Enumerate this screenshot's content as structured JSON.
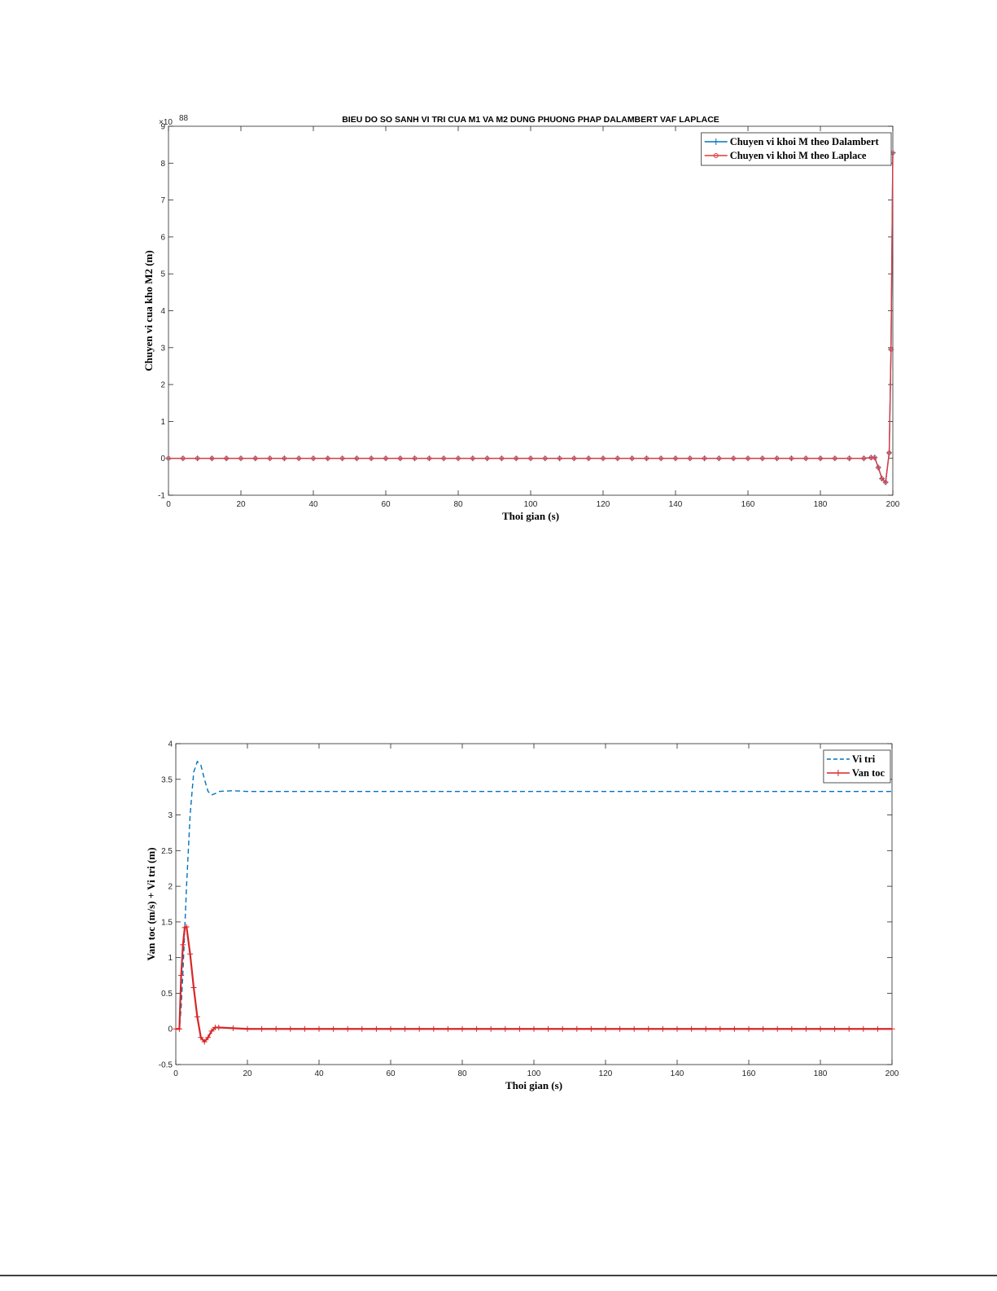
{
  "chart_data": [
    {
      "type": "line",
      "title": "BIEU DO SO SANH VI TRI CUA M1 VA M2 DUNG PHUONG PHAP DALAMBERT VAF LAPLACE",
      "x_label": "Thoi gian (s)",
      "y_label": "Chuyen vi cua kho M2 (m)",
      "y_multiplier": "×10",
      "y_multiplier_power": 88,
      "xlim": [
        0,
        200
      ],
      "xticks": [
        0,
        20,
        40,
        60,
        80,
        100,
        120,
        140,
        160,
        180,
        200
      ],
      "ylim": [
        -1,
        9
      ],
      "yticks": [
        -1,
        0,
        1,
        2,
        3,
        4,
        5,
        6,
        7,
        8,
        9
      ],
      "legend": "northeast",
      "x": [
        0,
        4,
        8,
        12,
        16,
        20,
        24,
        28,
        32,
        36,
        40,
        44,
        48,
        52,
        56,
        60,
        64,
        68,
        72,
        76,
        80,
        84,
        88,
        92,
        96,
        100,
        104,
        108,
        112,
        116,
        120,
        124,
        128,
        132,
        136,
        140,
        144,
        148,
        152,
        156,
        160,
        164,
        168,
        172,
        176,
        180,
        184,
        188,
        192,
        194,
        195,
        196,
        197,
        198,
        199,
        199.5,
        200
      ],
      "series": [
        {
          "name": "Chuyen vi khoi M theo Dalambert",
          "color": "#0072bd",
          "marker": "+",
          "line_style": "solid",
          "values": [
            0,
            0,
            0,
            0,
            0,
            0,
            0,
            0,
            0,
            0,
            0,
            0,
            0,
            0,
            0,
            0,
            0,
            0,
            0,
            0,
            0,
            0,
            0,
            0,
            0,
            0,
            0,
            0,
            0,
            0,
            0,
            0,
            0,
            0,
            0,
            0,
            0,
            0,
            0,
            0,
            0,
            0,
            0,
            0,
            0,
            0,
            0,
            0,
            0,
            0.02,
            0.02,
            -0.25,
            -0.55,
            -0.65,
            0.15,
            2.95,
            8.28
          ]
        },
        {
          "name": "Chuyen vi khoi M theo Laplace",
          "color": "#e0383c",
          "marker": "o",
          "line_style": "solid",
          "values": [
            0,
            0,
            0,
            0,
            0,
            0,
            0,
            0,
            0,
            0,
            0,
            0,
            0,
            0,
            0,
            0,
            0,
            0,
            0,
            0,
            0,
            0,
            0,
            0,
            0,
            0,
            0,
            0,
            0,
            0,
            0,
            0,
            0,
            0,
            0,
            0,
            0,
            0,
            0,
            0,
            0,
            0,
            0,
            0,
            0,
            0,
            0,
            0,
            0,
            0.02,
            0.02,
            -0.25,
            -0.55,
            -0.65,
            0.15,
            2.95,
            8.28
          ]
        }
      ]
    },
    {
      "type": "line",
      "x_label": "Thoi gian (s)",
      "y_label": "Van toc (m/s) + Vi tri (m)",
      "xlim": [
        0,
        200
      ],
      "xticks": [
        0,
        20,
        40,
        60,
        80,
        100,
        120,
        140,
        160,
        180,
        200
      ],
      "ylim": [
        -0.5,
        4
      ],
      "yticks": [
        -0.5,
        0,
        0.5,
        1,
        1.5,
        2,
        2.5,
        3,
        3.5,
        4
      ],
      "legend": "northeast",
      "x": [
        0,
        1,
        1.5,
        2,
        2.5,
        3,
        4,
        5,
        6,
        7,
        8,
        9,
        10,
        11,
        12,
        16,
        20,
        24,
        28,
        32,
        36,
        40,
        44,
        48,
        52,
        56,
        60,
        64,
        68,
        72,
        76,
        80,
        84,
        88,
        92,
        96,
        100,
        104,
        108,
        112,
        116,
        120,
        124,
        128,
        132,
        136,
        140,
        144,
        148,
        152,
        156,
        160,
        164,
        168,
        172,
        176,
        180,
        184,
        188,
        192,
        196,
        200
      ],
      "series": [
        {
          "name": "Vi tri",
          "color": "#0072bd",
          "marker": "none",
          "line_style": "dashed",
          "values": [
            0,
            0,
            0.3,
            0.8,
            1.4,
            2.0,
            3.0,
            3.6,
            3.75,
            3.7,
            3.5,
            3.33,
            3.28,
            3.3,
            3.33,
            3.34,
            3.33,
            3.33,
            3.33,
            3.33,
            3.33,
            3.33,
            3.33,
            3.33,
            3.33,
            3.33,
            3.33,
            3.33,
            3.33,
            3.33,
            3.33,
            3.33,
            3.33,
            3.33,
            3.33,
            3.33,
            3.33,
            3.33,
            3.33,
            3.33,
            3.33,
            3.33,
            3.33,
            3.33,
            3.33,
            3.33,
            3.33,
            3.33,
            3.33,
            3.33,
            3.33,
            3.33,
            3.33,
            3.33,
            3.33,
            3.33,
            3.33,
            3.33,
            3.33,
            3.33,
            3.33,
            3.33
          ]
        },
        {
          "name": "Van toc",
          "color": "#d62728",
          "marker": "+",
          "line_style": "solid",
          "values": [
            0,
            0,
            0.75,
            1.18,
            1.42,
            1.43,
            1.05,
            0.58,
            0.17,
            -0.12,
            -0.18,
            -0.12,
            -0.03,
            0.02,
            0.02,
            0.01,
            0,
            0,
            0,
            0,
            0,
            0,
            0,
            0,
            0,
            0,
            0,
            0,
            0,
            0,
            0,
            0,
            0,
            0,
            0,
            0,
            0,
            0,
            0,
            0,
            0,
            0,
            0,
            0,
            0,
            0,
            0,
            0,
            0,
            0,
            0,
            0,
            0,
            0,
            0,
            0,
            0,
            0,
            0,
            0,
            0,
            0
          ]
        }
      ]
    }
  ]
}
